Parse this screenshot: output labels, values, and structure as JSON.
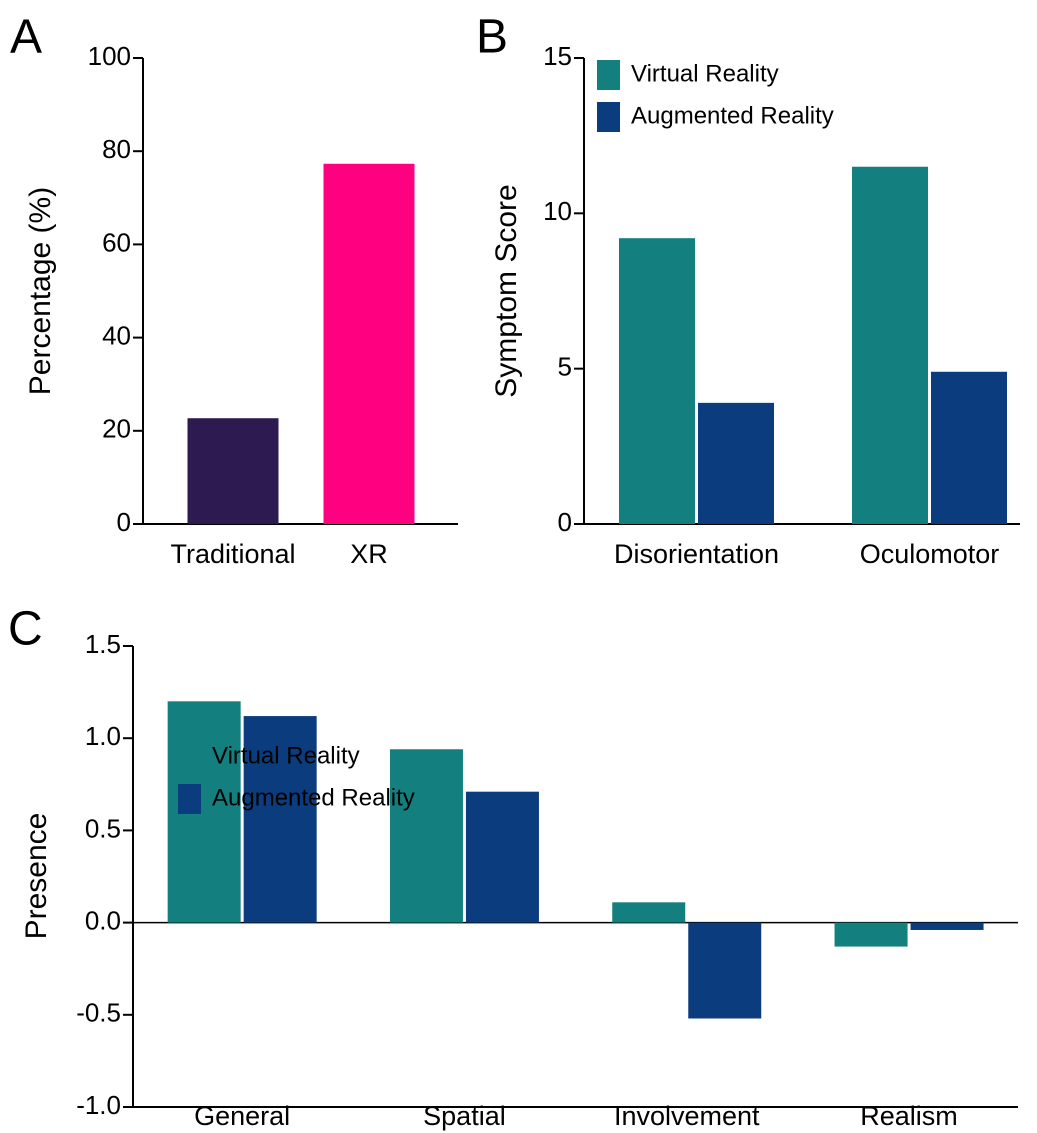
{
  "chart_data": [
    {
      "type": "bar",
      "label": "A",
      "ylabel": "Percentage (%)",
      "categories": [
        "Traditional",
        "XR"
      ],
      "values": [
        22.7,
        77.3
      ],
      "colors": [
        "#2d1a50",
        "#ff0080"
      ],
      "ylim": [
        0,
        100
      ],
      "yticks": [
        0,
        20,
        40,
        60,
        80,
        100
      ]
    },
    {
      "type": "bar",
      "label": "B",
      "ylabel": "Symptom Score",
      "categories": [
        "Disorientation",
        "Oculomotor"
      ],
      "series": [
        {
          "name": "Virtual Reality",
          "color": "#137f7f",
          "values": [
            9.2,
            11.5
          ]
        },
        {
          "name": "Augmented Reality",
          "color": "#0b3d7e",
          "values": [
            3.9,
            4.9
          ]
        }
      ],
      "ylim": [
        0,
        15
      ],
      "yticks": [
        0,
        5,
        10,
        15
      ],
      "legend": "upper left"
    },
    {
      "type": "bar",
      "label": "C",
      "ylabel": "Presence",
      "categories": [
        "General",
        "Spatial",
        "Involvement",
        "Realism"
      ],
      "series": [
        {
          "name": "Virtual Reality",
          "color": "#137f7f",
          "values": [
            1.2,
            0.94,
            0.11,
            -0.13
          ]
        },
        {
          "name": "Augmented Reality",
          "color": "#0b3d7e",
          "values": [
            1.12,
            0.71,
            -0.52,
            -0.04
          ]
        }
      ],
      "ylim": [
        -1,
        1.5
      ],
      "yticks": [
        {
          "value": -1,
          "label": "-1.0"
        },
        -0.5,
        {
          "value": 0,
          "label": "0.0"
        },
        0.5,
        {
          "value": 1,
          "label": "1.0"
        },
        1.5
      ],
      "legend": "lower left"
    }
  ]
}
